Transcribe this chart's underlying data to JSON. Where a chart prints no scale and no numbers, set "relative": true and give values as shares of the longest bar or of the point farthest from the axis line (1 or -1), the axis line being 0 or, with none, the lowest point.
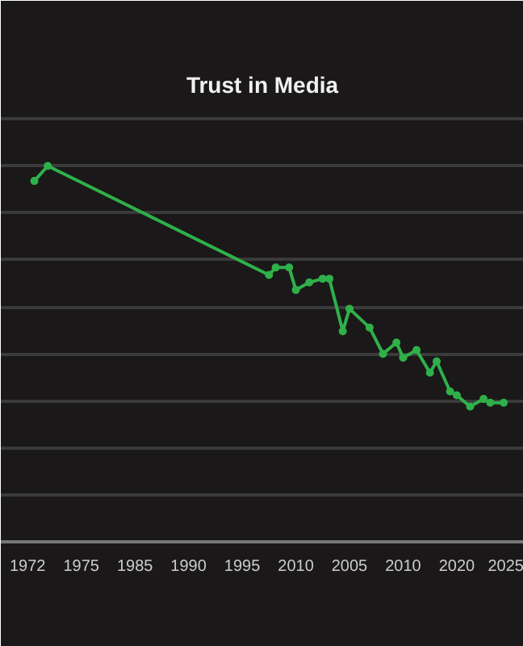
{
  "chart_data": {
    "type": "line",
    "title": "Trust in Media",
    "relative": true,
    "grid": "y",
    "marker": "circle",
    "line_style": "solid",
    "categories": [
      "1972",
      null,
      null,
      null,
      null,
      null,
      null,
      null,
      "1975",
      null,
      null,
      null,
      null,
      null,
      null,
      null,
      "1985",
      null,
      null,
      null,
      null,
      null,
      null,
      null,
      "1990",
      null,
      null,
      null,
      null,
      null,
      null,
      null,
      "1995",
      null,
      null,
      null,
      null,
      null,
      null,
      null,
      "2010",
      null,
      null,
      null,
      null,
      null,
      null,
      null,
      "2005",
      null,
      null,
      null,
      null,
      null,
      null,
      null,
      "2010",
      null,
      null,
      null,
      null,
      null,
      null,
      null,
      "2020",
      null,
      null,
      null,
      null,
      null,
      null,
      null,
      "2025"
    ],
    "series": [
      {
        "color": "#2fb04a",
        "values": [
          null,
          0.96,
          null,
          1,
          null,
          null,
          null,
          null,
          null,
          null,
          null,
          null,
          null,
          null,
          null,
          null,
          null,
          null,
          null,
          null,
          null,
          null,
          null,
          null,
          null,
          null,
          null,
          null,
          null,
          null,
          null,
          null,
          null,
          null,
          null,
          null,
          0.71,
          0.73,
          null,
          0.73,
          0.67,
          null,
          0.69,
          null,
          0.7,
          0.7,
          null,
          0.56,
          0.62,
          null,
          null,
          0.57,
          null,
          0.5,
          null,
          0.53,
          0.49,
          null,
          0.51,
          null,
          0.45,
          0.48,
          null,
          0.4,
          0.39,
          null,
          0.36,
          null,
          0.38,
          0.37,
          null,
          0.37,
          null
        ]
      }
    ]
  }
}
